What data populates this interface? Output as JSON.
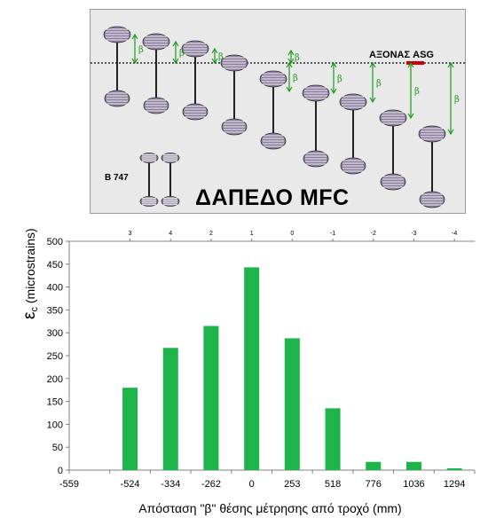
{
  "photo": {
    "title": "ΔΑΠΕΔΟ MFC",
    "plane_label": "B 747",
    "axis_label": "ΑΞΟΝΑΣ ASG",
    "beta_symbol": "β",
    "colors": {
      "background": "#e9e9e9",
      "dashed_axis": "#000000",
      "arrows": "#1a9b1a",
      "wheel": "#8c7ea0",
      "axis_marker": "#cc0000"
    }
  },
  "chart_data": {
    "type": "bar",
    "categories": [
      "-559",
      "-524",
      "-334",
      "-262",
      "0",
      "253",
      "518",
      "776",
      "1036",
      "1294"
    ],
    "values": [
      null,
      180,
      267,
      315,
      443,
      288,
      135,
      18,
      18,
      4
    ],
    "top_axis_labels": [
      "3",
      "4",
      "2",
      "1",
      "0",
      "-1",
      "-2",
      "-3",
      "-4"
    ],
    "ylim": [
      0,
      500
    ],
    "yticks": [
      0,
      50,
      100,
      150,
      200,
      250,
      300,
      350,
      400,
      450,
      500
    ],
    "xlabel": "Απόσταση \"β\" θέσης μέτρησης από τροχό (mm)",
    "ylabel_symbol": "ε",
    "ylabel_sub": "c",
    "ylabel_unit": "(microstrains)",
    "bar_color": "#1db54a",
    "grid": false
  }
}
